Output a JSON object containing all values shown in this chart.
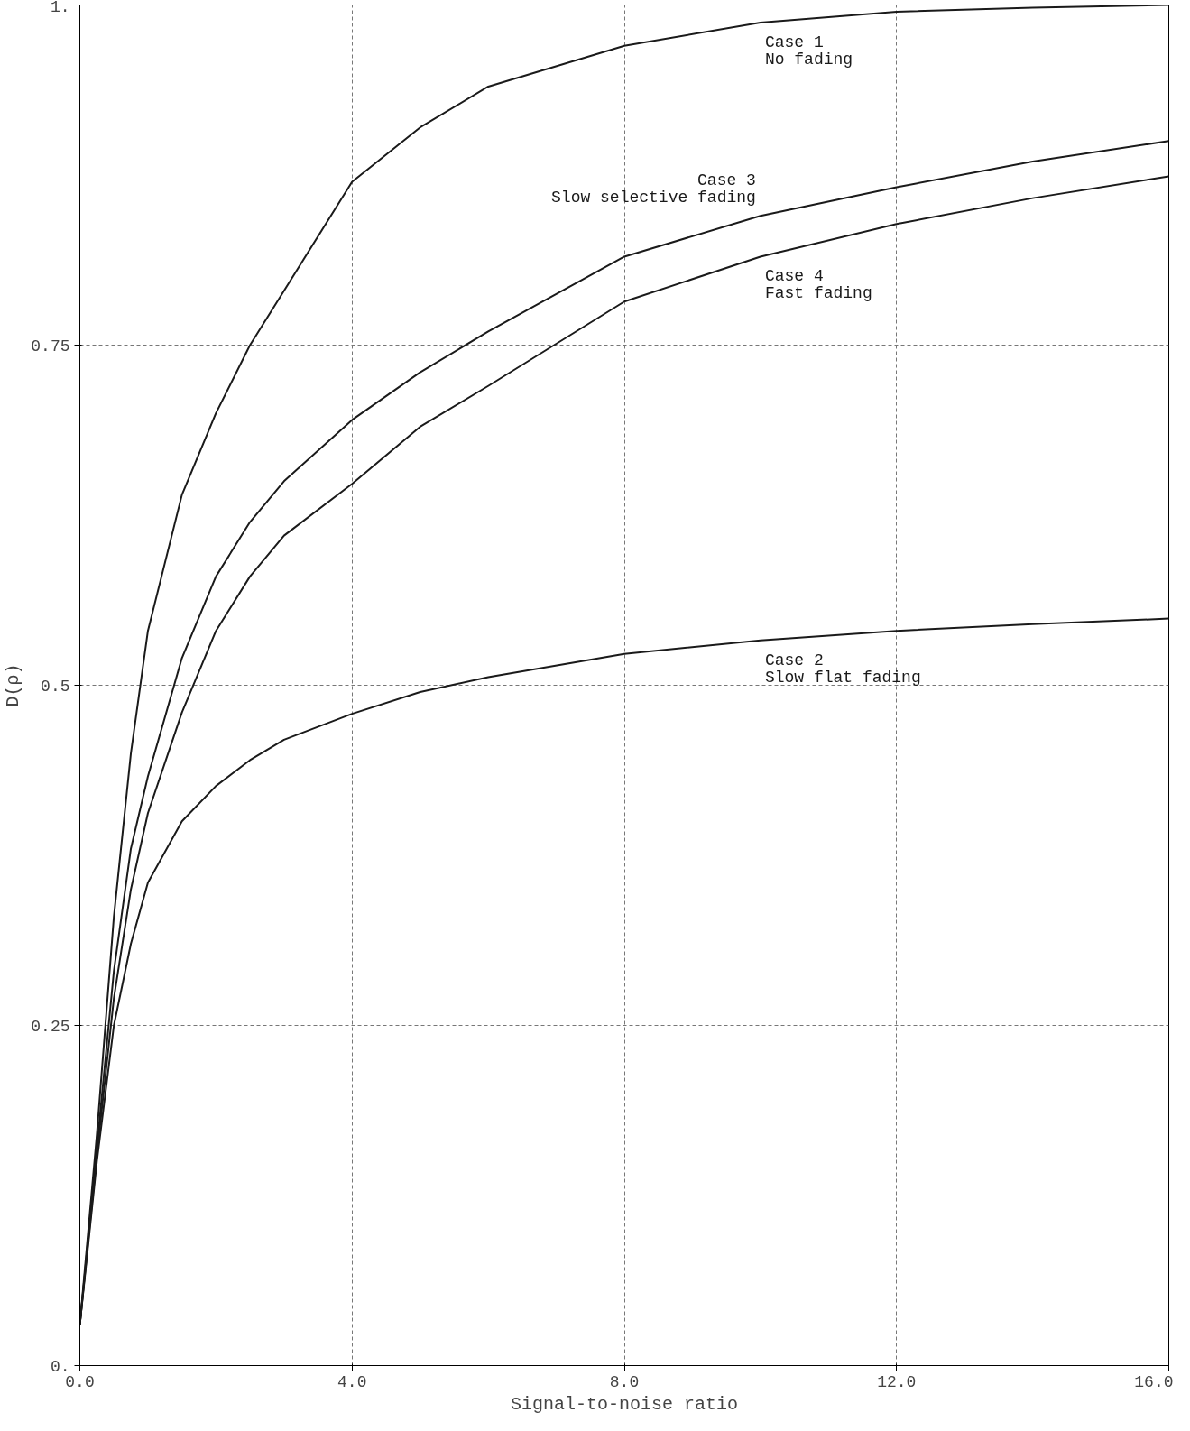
{
  "chart_data": {
    "type": "line",
    "xlabel": "Signal-to-noise ratio",
    "ylabel": "D(ρ)",
    "xlim": [
      0,
      16
    ],
    "ylim": [
      0,
      1
    ],
    "xticks": [
      {
        "value": 0,
        "label": "0.0"
      },
      {
        "value": 4,
        "label": "4.0"
      },
      {
        "value": 8,
        "label": "8.0"
      },
      {
        "value": 12,
        "label": "12.0"
      },
      {
        "value": 16,
        "label": "16.0"
      }
    ],
    "yticks": [
      {
        "value": 0,
        "label": "0."
      },
      {
        "value": 0.25,
        "label": "0.25"
      },
      {
        "value": 0.5,
        "label": "0.5"
      },
      {
        "value": 0.75,
        "label": "0.75"
      },
      {
        "value": 1,
        "label": "1."
      }
    ],
    "grid": true,
    "line_style": "solid",
    "marker": "none",
    "x": [
      0,
      0.25,
      0.5,
      0.75,
      1,
      1.5,
      2,
      2.5,
      3,
      4,
      5,
      6,
      8,
      10,
      12,
      14,
      16
    ],
    "series": [
      {
        "name": "Case 1\nNo fading",
        "color": "#1a1a1a",
        "values": [
          0.03,
          0.17,
          0.33,
          0.45,
          0.54,
          0.64,
          0.7,
          0.75,
          0.79,
          0.87,
          0.91,
          0.94,
          0.97,
          0.987,
          0.995,
          0.998,
          1.0
        ]
      },
      {
        "name": "Case 2\nSlow flat fading",
        "color": "#1a1a1a",
        "values": [
          0.03,
          0.15,
          0.25,
          0.31,
          0.355,
          0.4,
          0.426,
          0.445,
          0.46,
          0.479,
          0.495,
          0.506,
          0.523,
          0.533,
          0.54,
          0.545,
          0.549
        ]
      },
      {
        "name": "Case 3\nSlow selective fading",
        "color": "#1a1a1a",
        "values": [
          0.03,
          0.16,
          0.29,
          0.38,
          0.433,
          0.52,
          0.58,
          0.62,
          0.65,
          0.695,
          0.73,
          0.76,
          0.815,
          0.845,
          0.866,
          0.885,
          0.9
        ]
      },
      {
        "name": "Case 4\nFast fading",
        "color": "#1a1a1a",
        "values": [
          0.03,
          0.155,
          0.27,
          0.35,
          0.406,
          0.48,
          0.54,
          0.58,
          0.61,
          0.648,
          0.69,
          0.72,
          0.782,
          0.815,
          0.839,
          0.858,
          0.874
        ]
      }
    ]
  }
}
